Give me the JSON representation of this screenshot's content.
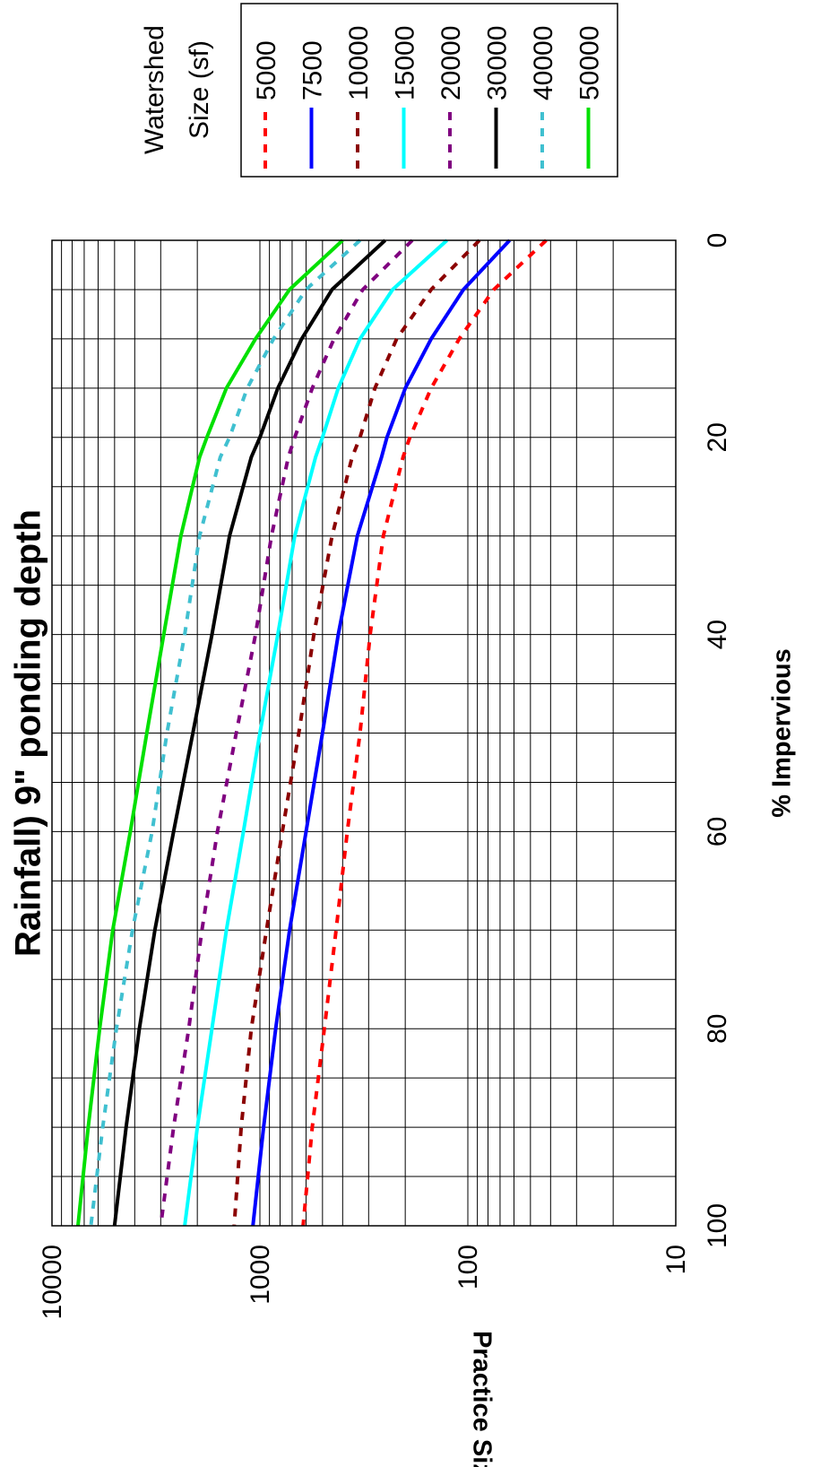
{
  "chart_data": {
    "type": "line",
    "title": "Rainfall) 9\" ponding depth",
    "xlabel": "% Impervious",
    "ylabel": "Practice Size (sf)",
    "xlim": [
      0,
      100
    ],
    "ylim": [
      10,
      10000
    ],
    "yscale": "log",
    "grid": true,
    "orientation": "rotated 90° clockwise",
    "legend_title": "Watershed Size (sf)",
    "legend_position": "right",
    "x_ticks": [
      "0",
      "20",
      "40",
      "60",
      "80",
      "100"
    ],
    "y_ticks": [
      "10",
      "100",
      "1000",
      "10000"
    ],
    "x": [
      0,
      5,
      10,
      15,
      20,
      22,
      30,
      40,
      50,
      60,
      70,
      80,
      90,
      100
    ],
    "series": [
      {
        "name": "5000",
        "color": "#ff0000",
        "dash": "dotted",
        "values": [
          42,
          75,
          110,
          150,
          190,
          205,
          255,
          295,
          330,
          380,
          430,
          490,
          560,
          620
        ]
      },
      {
        "name": "7500",
        "color": "#0000ff",
        "dash": "solid",
        "values": [
          63,
          105,
          150,
          200,
          245,
          260,
          340,
          420,
          500,
          600,
          720,
          840,
          960,
          1080
        ]
      },
      {
        "name": "10000",
        "color": "#8b0000",
        "dash": "dotted",
        "values": [
          88,
          150,
          220,
          280,
          330,
          360,
          450,
          550,
          650,
          780,
          930,
          1100,
          1230,
          1330
        ]
      },
      {
        "name": "15000",
        "color": "#00ffff",
        "dash": "solid",
        "values": [
          126,
          230,
          330,
          420,
          500,
          540,
          680,
          820,
          1000,
          1200,
          1450,
          1700,
          2000,
          2300
        ]
      },
      {
        "name": "20000",
        "color": "#800080",
        "dash": "dotted",
        "values": [
          185,
          320,
          440,
          560,
          680,
          730,
          880,
          1050,
          1300,
          1600,
          1900,
          2200,
          2600,
          3000
        ]
      },
      {
        "name": "30000",
        "color": "#000000",
        "dash": "solid",
        "values": [
          250,
          450,
          630,
          820,
          1000,
          1100,
          1400,
          1700,
          2100,
          2600,
          3200,
          3800,
          4400,
          5000
        ]
      },
      {
        "name": "40000",
        "color": "#40c0d0",
        "dash": "dotted",
        "values": [
          330,
          600,
          860,
          1150,
          1400,
          1550,
          1950,
          2300,
          2800,
          3300,
          4100,
          4900,
          5700,
          6500
        ]
      },
      {
        "name": "50000",
        "color": "#00e000",
        "dash": "solid",
        "values": [
          400,
          720,
          1050,
          1450,
          1800,
          1950,
          2400,
          2900,
          3500,
          4200,
          5100,
          5900,
          6700,
          7500
        ]
      }
    ]
  }
}
